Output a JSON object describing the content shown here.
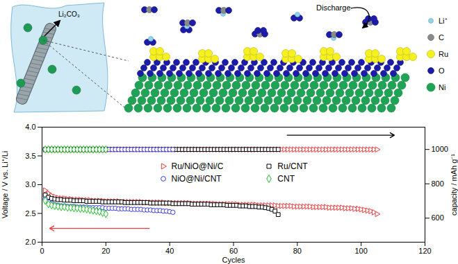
{
  "chart_data": {
    "type": "scatter",
    "x_label": "Cycles",
    "y_label": "Voltage / V vs. Li⁺/Li",
    "y2_label": "capacity / mAh g⁻¹",
    "xlim": [
      0,
      120
    ],
    "xticks": [
      0,
      20,
      40,
      60,
      80,
      100,
      120
    ],
    "ylim": [
      2.0,
      4.0
    ],
    "yticks": [
      {
        "value": 2,
        "label": "2.0"
      },
      {
        "value": 2.5,
        "label": "2.5"
      },
      {
        "value": 3,
        "label": "3.0"
      },
      {
        "value": 3.5,
        "label": "3.5"
      },
      {
        "value": 4,
        "label": "4.0"
      }
    ],
    "y2lim": [
      460,
      1130
    ],
    "y2ticks": [
      600,
      800,
      1000
    ],
    "legend": "center",
    "series": [
      {
        "name": "Ru/NiO@Ni/C",
        "color": "#ee3b3b",
        "marker": "triangle-right",
        "x": [
          1,
          2,
          3,
          4,
          5,
          6,
          7,
          8,
          9,
          10,
          11,
          12,
          13,
          14,
          15,
          16,
          17,
          18,
          19,
          20,
          21,
          22,
          23,
          24,
          25,
          26,
          27,
          28,
          29,
          30,
          31,
          32,
          33,
          34,
          35,
          36,
          37,
          38,
          39,
          40,
          41,
          42,
          43,
          44,
          45,
          46,
          47,
          48,
          49,
          50,
          51,
          52,
          53,
          54,
          55,
          56,
          57,
          58,
          59,
          60,
          61,
          62,
          63,
          64,
          65,
          66,
          67,
          68,
          69,
          70,
          71,
          72,
          73,
          74,
          75,
          76,
          77,
          78,
          79,
          80,
          81,
          82,
          83,
          84,
          85,
          86,
          87,
          88,
          89,
          90,
          91,
          92,
          93,
          94,
          95,
          96,
          97,
          98,
          99,
          100,
          101,
          102,
          103,
          104,
          105
        ],
        "values": [
          2.9,
          2.85,
          2.81,
          2.79,
          2.77,
          2.76,
          2.76,
          2.75,
          2.75,
          2.74,
          2.74,
          2.74,
          2.73,
          2.73,
          2.73,
          2.72,
          2.72,
          2.72,
          2.72,
          2.71,
          2.71,
          2.71,
          2.71,
          2.71,
          2.7,
          2.7,
          2.7,
          2.7,
          2.7,
          2.7,
          2.7,
          2.69,
          2.69,
          2.69,
          2.69,
          2.69,
          2.69,
          2.69,
          2.68,
          2.68,
          2.68,
          2.68,
          2.68,
          2.68,
          2.68,
          2.68,
          2.67,
          2.67,
          2.67,
          2.67,
          2.67,
          2.67,
          2.67,
          2.67,
          2.66,
          2.66,
          2.66,
          2.66,
          2.66,
          2.66,
          2.66,
          2.65,
          2.65,
          2.65,
          2.65,
          2.65,
          2.65,
          2.64,
          2.64,
          2.64,
          2.64,
          2.64,
          2.64,
          2.63,
          2.63,
          2.63,
          2.63,
          2.63,
          2.62,
          2.62,
          2.62,
          2.62,
          2.62,
          2.62,
          2.61,
          2.61,
          2.61,
          2.61,
          2.61,
          2.6,
          2.6,
          2.6,
          2.6,
          2.6,
          2.59,
          2.59,
          2.59,
          2.58,
          2.58,
          2.57,
          2.56,
          2.55,
          2.54,
          2.52,
          2.49
        ],
        "capacity": [
          1000,
          1000,
          1000,
          1000,
          1000,
          1000,
          1000,
          1000,
          1000,
          1000,
          1000,
          1000,
          1000,
          1000,
          1000,
          1000,
          1000,
          1000,
          1000,
          1000,
          1000,
          1000,
          1000,
          1000,
          1000,
          1000,
          1000,
          1000,
          1000,
          1000,
          1000,
          1000,
          1000,
          1000,
          1000,
          1000,
          1000,
          1000,
          1000,
          1000,
          1000,
          1000,
          1000,
          1000,
          1000,
          1000,
          1000,
          1000,
          1000,
          1000,
          1000,
          1000,
          1000,
          1000,
          1000,
          1000,
          1000,
          1000,
          1000,
          1000,
          1000,
          1000,
          1000,
          1000,
          1000,
          1000,
          1000,
          1000,
          1000,
          1000,
          1000,
          1000,
          1000,
          1000,
          1000,
          1000,
          1000,
          1000,
          1000,
          1000,
          1000,
          1000,
          1000,
          1000,
          1000,
          1000,
          1000,
          1000,
          1000,
          1000,
          1000,
          1000,
          1000,
          1000,
          1000,
          1000,
          1000,
          1000,
          1000,
          1000,
          1000,
          1000,
          1000,
          1000,
          1000
        ]
      },
      {
        "name": "Ru/CNT",
        "color": "#000000",
        "marker": "square",
        "x": [
          1,
          2,
          3,
          4,
          5,
          6,
          7,
          8,
          9,
          10,
          11,
          12,
          13,
          14,
          15,
          16,
          17,
          18,
          19,
          20,
          21,
          22,
          23,
          24,
          25,
          26,
          27,
          28,
          29,
          30,
          31,
          32,
          33,
          34,
          35,
          36,
          37,
          38,
          39,
          40,
          41,
          42,
          43,
          44,
          45,
          46,
          47,
          48,
          49,
          50,
          51,
          52,
          53,
          54,
          55,
          56,
          57,
          58,
          59,
          60,
          61,
          62,
          63,
          64,
          65,
          66,
          67,
          68,
          69,
          70,
          71,
          72,
          73,
          74
        ],
        "values": [
          2.82,
          2.78,
          2.76,
          2.75,
          2.74,
          2.74,
          2.73,
          2.73,
          2.73,
          2.72,
          2.72,
          2.72,
          2.72,
          2.71,
          2.71,
          2.71,
          2.71,
          2.71,
          2.7,
          2.7,
          2.7,
          2.7,
          2.7,
          2.7,
          2.7,
          2.69,
          2.69,
          2.69,
          2.69,
          2.69,
          2.69,
          2.69,
          2.69,
          2.68,
          2.68,
          2.68,
          2.68,
          2.68,
          2.68,
          2.68,
          2.67,
          2.67,
          2.67,
          2.67,
          2.67,
          2.67,
          2.66,
          2.66,
          2.66,
          2.66,
          2.66,
          2.66,
          2.65,
          2.65,
          2.65,
          2.65,
          2.65,
          2.64,
          2.64,
          2.64,
          2.64,
          2.63,
          2.63,
          2.63,
          2.62,
          2.62,
          2.62,
          2.61,
          2.61,
          2.6,
          2.59,
          2.57,
          2.54,
          2.48
        ],
        "capacity": [
          1000,
          1000,
          1000,
          1000,
          1000,
          1000,
          1000,
          1000,
          1000,
          1000,
          1000,
          1000,
          1000,
          1000,
          1000,
          1000,
          1000,
          1000,
          1000,
          1000,
          1000,
          1000,
          1000,
          1000,
          1000,
          1000,
          1000,
          1000,
          1000,
          1000,
          1000,
          1000,
          1000,
          1000,
          1000,
          1000,
          1000,
          1000,
          1000,
          1000,
          1000,
          1000,
          1000,
          1000,
          1000,
          1000,
          1000,
          1000,
          1000,
          1000,
          1000,
          1000,
          1000,
          1000,
          1000,
          1000,
          1000,
          1000,
          1000,
          1000,
          1000,
          1000,
          1000,
          1000,
          1000,
          1000,
          1000,
          1000,
          1000,
          1000,
          1000,
          1000,
          1000,
          1000
        ]
      },
      {
        "name": "NiO@Ni/CNT",
        "color": "#3a3ae0",
        "marker": "circle",
        "x": [
          1,
          2,
          3,
          4,
          5,
          6,
          7,
          8,
          9,
          10,
          11,
          12,
          13,
          14,
          15,
          16,
          17,
          18,
          19,
          20,
          21,
          22,
          23,
          24,
          25,
          26,
          27,
          28,
          29,
          30,
          31,
          32,
          33,
          34,
          35,
          36,
          37,
          38,
          39,
          40,
          41
        ],
        "values": [
          2.75,
          2.7,
          2.67,
          2.65,
          2.64,
          2.63,
          2.63,
          2.62,
          2.62,
          2.62,
          2.61,
          2.61,
          2.61,
          2.61,
          2.6,
          2.6,
          2.6,
          2.6,
          2.6,
          2.59,
          2.59,
          2.59,
          2.59,
          2.58,
          2.58,
          2.58,
          2.58,
          2.57,
          2.57,
          2.57,
          2.57,
          2.56,
          2.56,
          2.56,
          2.55,
          2.55,
          2.55,
          2.54,
          2.54,
          2.53,
          2.52
        ],
        "capacity": [
          1000,
          1000,
          1000,
          1000,
          1000,
          1000,
          1000,
          1000,
          1000,
          1000,
          1000,
          1000,
          1000,
          1000,
          1000,
          1000,
          1000,
          1000,
          1000,
          1000,
          1000,
          1000,
          1000,
          1000,
          1000,
          1000,
          1000,
          1000,
          1000,
          1000,
          1000,
          1000,
          1000,
          1000,
          1000,
          1000,
          1000,
          1000,
          1000,
          1000,
          1000
        ]
      },
      {
        "name": "CNT",
        "color": "#22c02a",
        "marker": "diamond",
        "x": [
          1,
          2,
          3,
          4,
          5,
          6,
          7,
          8,
          9,
          10,
          11,
          12,
          13,
          14,
          15,
          16,
          17,
          18,
          19,
          20
        ],
        "values": [
          2.72,
          2.66,
          2.64,
          2.63,
          2.62,
          2.61,
          2.61,
          2.6,
          2.6,
          2.59,
          2.59,
          2.58,
          2.58,
          2.57,
          2.56,
          2.55,
          2.54,
          2.53,
          2.51,
          2.49
        ],
        "capacity": [
          1000,
          1000,
          1000,
          1000,
          1000,
          1000,
          1000,
          1000,
          1000,
          1000,
          1000,
          1000,
          1000,
          1000,
          1000,
          1000,
          1000,
          1000,
          1000,
          1000
        ]
      }
    ]
  },
  "illustration": {
    "annotations": [
      "Li₂CO₃",
      "Discharge"
    ],
    "legend": [
      "Li⁺",
      "C",
      "Ru",
      "O",
      "Ni"
    ]
  }
}
